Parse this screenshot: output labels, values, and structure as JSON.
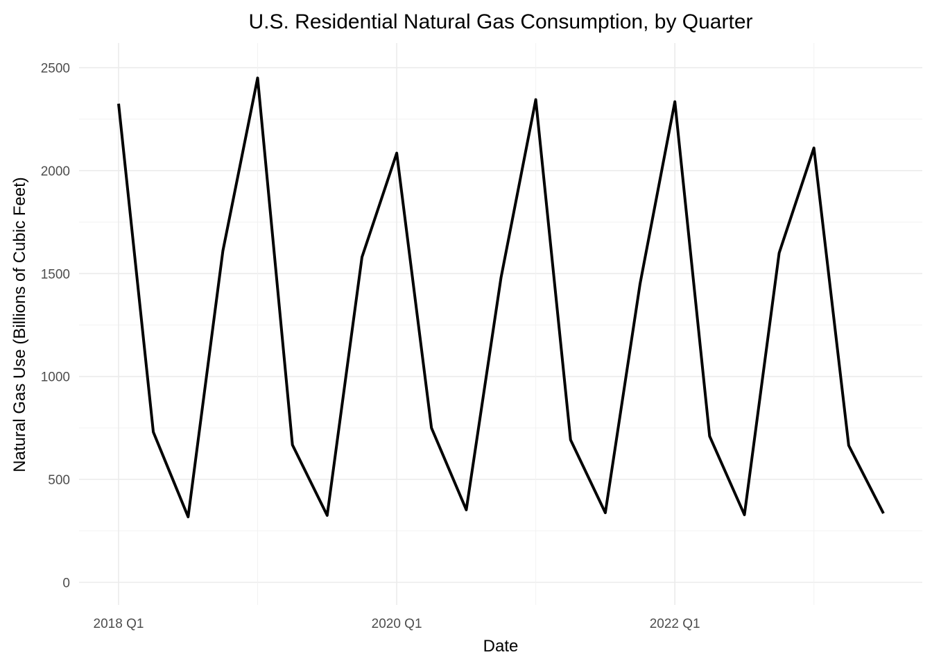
{
  "chart_data": {
    "type": "line",
    "title": "U.S. Residential Natural Gas Consumption, by Quarter",
    "xlabel": "Date",
    "ylabel": "Natural Gas Use (Billions of Cubic Feet)",
    "x": [
      "2018 Q1",
      "2018 Q2",
      "2018 Q3",
      "2018 Q4",
      "2019 Q1",
      "2019 Q2",
      "2019 Q3",
      "2019 Q4",
      "2020 Q1",
      "2020 Q2",
      "2020 Q3",
      "2020 Q4",
      "2021 Q1",
      "2021 Q2",
      "2021 Q3",
      "2021 Q4",
      "2022 Q1",
      "2022 Q2",
      "2022 Q3",
      "2022 Q4",
      "2023 Q1",
      "2023 Q2",
      "2023 Q3"
    ],
    "x_tick_labels": [
      "2018 Q1",
      "2020 Q1",
      "2022 Q1"
    ],
    "y_ticks": [
      0,
      500,
      1000,
      1500,
      2000,
      2500
    ],
    "ylim": [
      -110,
      2620
    ],
    "grid": true,
    "series": [
      {
        "values": [
          2325,
          730,
          318,
          1610,
          2450,
          668,
          325,
          1580,
          2085,
          750,
          352,
          1480,
          2345,
          692,
          338,
          1450,
          2335,
          710,
          328,
          1600,
          2110,
          665,
          335
        ],
        "color": "#000000"
      }
    ]
  }
}
